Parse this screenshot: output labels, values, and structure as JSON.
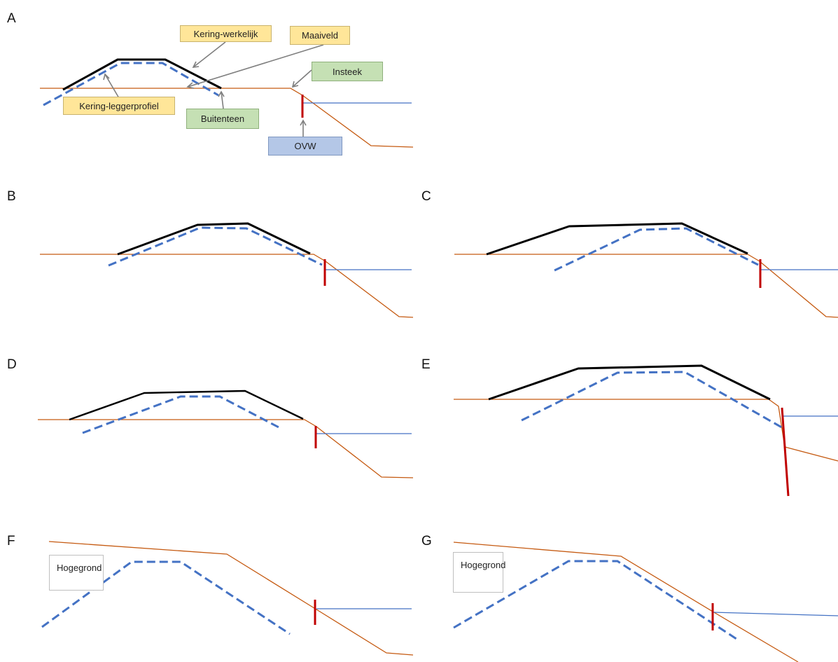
{
  "panels": {
    "A": "A",
    "B": "B",
    "C": "C",
    "D": "D",
    "E": "E",
    "F": "F",
    "G": "G"
  },
  "legend": {
    "kering_werkelijk": "Kering-werkelijk",
    "maaiveld": "Maaiveld",
    "insteek": "Insteek",
    "kering_leggerprofiel": "Kering-leggerprofiel",
    "buitenteen": "Buitenteen",
    "ovw": "OVW"
  },
  "hoge_grond": {
    "line1": "Hoge",
    "line2": "grond"
  },
  "colors": {
    "ground": "#c55a11",
    "water": "#4472c4",
    "actual_dike": "#000000",
    "legger_profile": "#4472c4",
    "ovw_marker": "#c00000",
    "label_yellow": "#ffe699",
    "label_green": "#c5e0b4",
    "label_blue": "#b4c7e7"
  }
}
